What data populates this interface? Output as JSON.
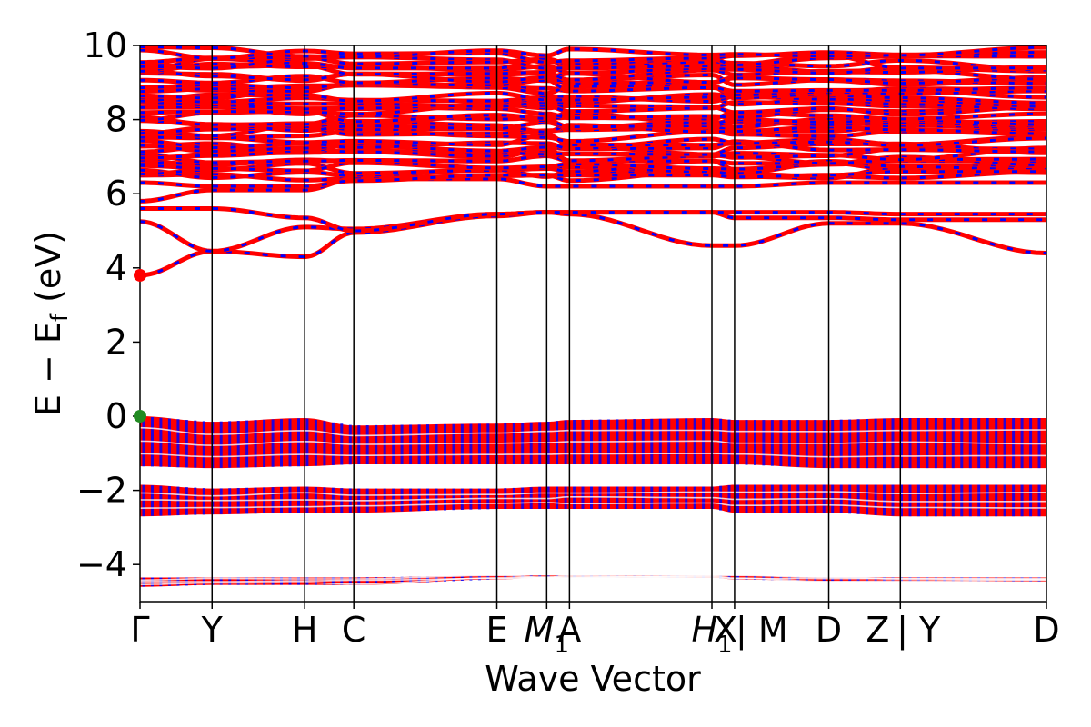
{
  "chart_data": {
    "type": "line",
    "xlabel": "Wave Vector",
    "ylabel_parts": {
      "main": "E − E",
      "sub": "f",
      "unit": " (eV)"
    },
    "ylim": [
      -5,
      10
    ],
    "yticks": [
      -4,
      -2,
      0,
      2,
      4,
      6,
      8,
      10
    ],
    "ytick_labels": [
      "−4",
      "−2",
      "0",
      "2",
      "4",
      "6",
      "8",
      "10"
    ],
    "kpath_positions": [
      0,
      0.0795,
      0.1817,
      0.2359,
      0.3937,
      0.4487,
      0.4738,
      0.6309,
      0.6559,
      0.7598,
      0.8388,
      1.0
    ],
    "kpath_labels": [
      {
        "text": "Γ",
        "pos": 0,
        "italic": false
      },
      {
        "text": "Y",
        "pos": 0.0795,
        "italic": false
      },
      {
        "text": "H",
        "pos": 0.1817,
        "italic": false
      },
      {
        "text": "C",
        "pos": 0.2359,
        "italic": false
      },
      {
        "text": "E",
        "pos": 0.3937,
        "italic": false
      },
      {
        "text": "M",
        "pos": 0.4487,
        "italic": true,
        "sub": "1"
      },
      {
        "text": "A",
        "pos": 0.4738,
        "italic": false
      },
      {
        "text": "H",
        "pos": 0.6309,
        "italic": true,
        "sub": "1"
      },
      {
        "text": "X",
        "pos": 0.6459,
        "italic": false
      },
      {
        "text": "| M",
        "pos": 0.6859,
        "italic": false
      },
      {
        "text": "D",
        "pos": 0.7598,
        "italic": false
      },
      {
        "text": "Z",
        "pos": 0.8138,
        "italic": false
      },
      {
        "text": "| Y",
        "pos": 0.8588,
        "italic": false
      },
      {
        "text": "D",
        "pos": 1.0,
        "italic": false
      }
    ],
    "series": [
      {
        "color": "#ff0000",
        "style": "solid"
      },
      {
        "color": "#0000ff",
        "style": "dashed"
      }
    ],
    "bands": {
      "conduction": [
        {
          "name": "c1",
          "y": [
            3.8,
            4.45,
            4.3,
            4.95,
            5.4,
            5.5,
            5.45,
            4.6,
            4.6,
            5.2,
            5.2,
            4.4,
            4.4,
            5.2
          ]
        },
        {
          "name": "c2",
          "y": [
            5.25,
            4.45,
            5.1,
            5.05,
            5.45,
            5.5,
            5.5,
            5.5,
            5.35,
            5.35,
            5.3,
            5.3,
            4.45,
            5.25
          ]
        },
        {
          "name": "c3",
          "y": [
            5.6,
            5.6,
            5.35,
            5.0,
            5.45,
            5.5,
            5.5,
            5.5,
            5.5,
            5.5,
            5.45,
            5.45,
            5.6,
            5.55
          ]
        },
        {
          "name": "c4",
          "y": [
            5.8,
            6.1,
            6.1,
            6.4,
            6.4,
            6.2,
            6.2,
            6.2,
            6.2,
            6.3,
            6.3,
            6.3,
            6.3,
            6.3
          ]
        },
        {
          "name": "c5",
          "y": [
            6.3,
            6.2,
            6.2,
            6.35,
            6.5,
            6.5,
            6.5,
            6.5,
            6.45,
            6.5,
            6.6,
            6.6,
            6.45,
            6.45
          ]
        }
      ],
      "valence_blocks": [
        {
          "name": "v-top",
          "top": [
            0.0,
            -0.15,
            -0.05,
            -0.25,
            -0.2,
            -0.15,
            -0.1,
            -0.05,
            -0.1,
            -0.1,
            -0.05,
            -0.05,
            -0.15,
            -0.15
          ],
          "bottom": [
            -1.35,
            -1.4,
            -1.35,
            -1.3,
            -1.3,
            -1.3,
            -1.3,
            -1.3,
            -1.3,
            -1.4,
            -1.4,
            -1.4,
            -1.4,
            -1.35
          ]
        },
        {
          "name": "v-mid",
          "top": [
            -1.85,
            -1.95,
            -1.9,
            -1.95,
            -1.95,
            -1.9,
            -1.9,
            -1.9,
            -1.85,
            -1.85,
            -1.85,
            -1.85,
            -1.9,
            -1.9
          ],
          "bottom": [
            -2.7,
            -2.65,
            -2.6,
            -2.6,
            -2.5,
            -2.5,
            -2.5,
            -2.5,
            -2.6,
            -2.6,
            -2.7,
            -2.7,
            -2.7,
            -2.7
          ]
        },
        {
          "name": "v-low",
          "top": [
            -4.35,
            -4.35,
            -4.35,
            -4.35,
            -4.3,
            -4.3,
            -4.3,
            -4.3,
            -4.3,
            -4.35,
            -4.35,
            -4.35,
            -4.35,
            -4.35
          ],
          "bottom": [
            -4.6,
            -4.55,
            -4.55,
            -4.55,
            -4.4,
            -4.35,
            -4.35,
            -4.35,
            -4.4,
            -4.45,
            -4.45,
            -4.45,
            -4.55,
            -4.45
          ]
        }
      ],
      "high_block": {
        "top": 9.8,
        "bottom": 6.5
      }
    },
    "markers": [
      {
        "name": "cbm",
        "x": 0,
        "y": 3.8,
        "color": "#ff0000"
      },
      {
        "name": "vbm",
        "x": 0,
        "y": 0.0,
        "color": "#228b22"
      }
    ]
  }
}
